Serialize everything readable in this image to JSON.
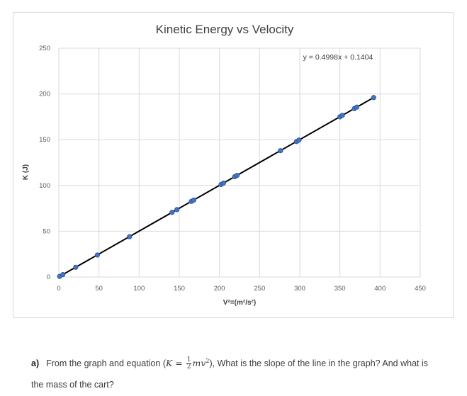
{
  "chart_data": {
    "type": "scatter",
    "title": "Kinetic Energy vs Velocity",
    "xlabel": "V²=(m²/s²)",
    "ylabel": "K (J)",
    "xlim": [
      0,
      450
    ],
    "ylim": [
      0,
      250
    ],
    "x_ticks": [
      "0",
      "50",
      "100",
      "150",
      "200",
      "250",
      "300",
      "350",
      "400",
      "450"
    ],
    "y_ticks": [
      "0",
      "50",
      "100",
      "150",
      "200",
      "250"
    ],
    "grid": true,
    "trendline_equation": "y = 0.4998x + 0.1404",
    "trendline": {
      "slope": 0.4998,
      "intercept": 0.1404
    },
    "marker_color": "#4472c4",
    "line_color": "#000000",
    "points": [
      {
        "x": 1,
        "y": 0.6
      },
      {
        "x": 5,
        "y": 2.6
      },
      {
        "x": 21,
        "y": 10.6
      },
      {
        "x": 48,
        "y": 24
      },
      {
        "x": 88,
        "y": 44
      },
      {
        "x": 141,
        "y": 70.6
      },
      {
        "x": 147,
        "y": 73.6
      },
      {
        "x": 165,
        "y": 82.6
      },
      {
        "x": 168,
        "y": 84
      },
      {
        "x": 202,
        "y": 101
      },
      {
        "x": 205,
        "y": 102.6
      },
      {
        "x": 219,
        "y": 109.6
      },
      {
        "x": 222,
        "y": 111
      },
      {
        "x": 276,
        "y": 138
      },
      {
        "x": 296,
        "y": 148
      },
      {
        "x": 299,
        "y": 149.6
      },
      {
        "x": 350,
        "y": 175
      },
      {
        "x": 353,
        "y": 176.6
      },
      {
        "x": 368,
        "y": 184
      },
      {
        "x": 371,
        "y": 185.6
      },
      {
        "x": 392,
        "y": 196
      }
    ]
  },
  "question": {
    "label": "a)",
    "text_before": "From the graph and equation (",
    "equation_lhs": "K",
    "equation_eq": " = ",
    "frac_num": "1",
    "frac_den": "2",
    "equation_rhs": "mv",
    "equation_sup": "2",
    "text_after": "), What is the slope of the line in the graph? And what is",
    "line2": "the mass of the cart?"
  }
}
